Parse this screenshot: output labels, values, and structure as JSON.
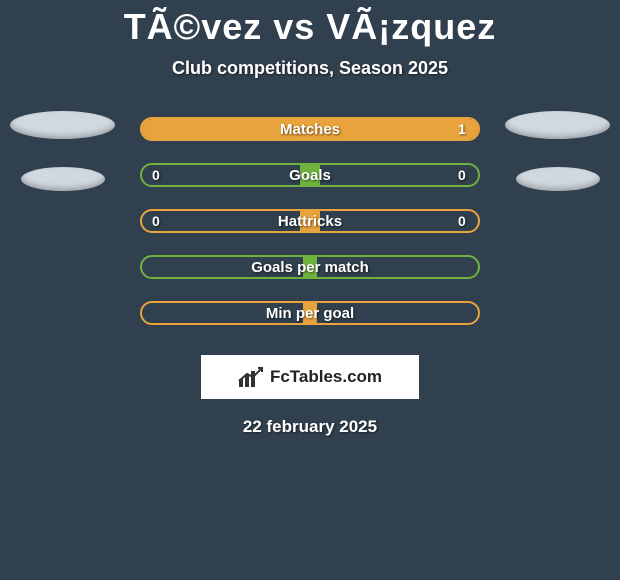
{
  "title": "TÃ©vez vs VÃ¡zquez",
  "subtitle": "Club competitions, Season 2025",
  "date": "22 february 2025",
  "logo_text": "FcTables.com",
  "background_color": "#31404e",
  "silhouette_colors": {
    "left": "#d1d9e0",
    "right": "#d1d9e0"
  },
  "stat_rows": [
    {
      "label": "Matches",
      "left_value": "",
      "right_value": "1",
      "border_color": "#e8a33d",
      "fill": {
        "color": "#e8a33d",
        "from_pct": 0,
        "to_pct": 100
      }
    },
    {
      "label": "Goals",
      "left_value": "0",
      "right_value": "0",
      "border_color": "#6fb23f",
      "fill": {
        "color": "#6fb23f",
        "from_pct": 47,
        "to_pct": 53
      }
    },
    {
      "label": "Hattricks",
      "left_value": "0",
      "right_value": "0",
      "border_color": "#e8a33d",
      "fill": {
        "color": "#e8a33d",
        "from_pct": 47,
        "to_pct": 53
      }
    },
    {
      "label": "Goals per match",
      "left_value": "",
      "right_value": "",
      "border_color": "#6fb23f",
      "fill": {
        "color": "#6fb23f",
        "from_pct": 48,
        "to_pct": 52
      }
    },
    {
      "label": "Min per goal",
      "left_value": "",
      "right_value": "",
      "border_color": "#e8a33d",
      "fill": {
        "color": "#e8a33d",
        "from_pct": 48,
        "to_pct": 52
      }
    }
  ]
}
